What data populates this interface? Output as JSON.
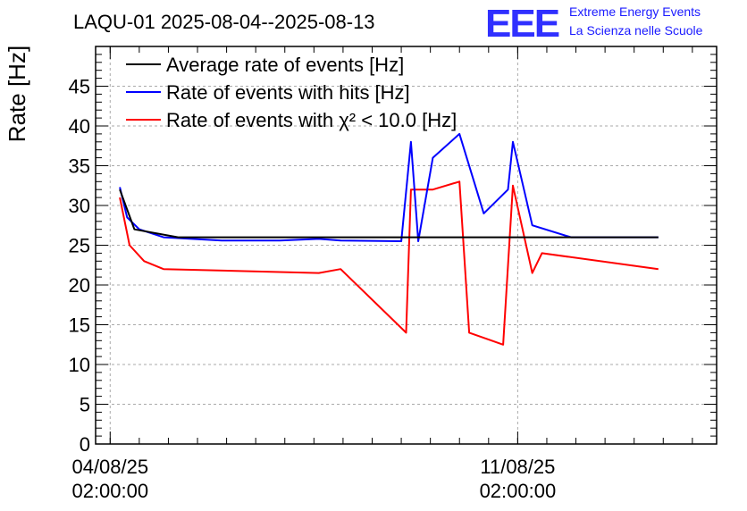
{
  "logo": {
    "letters": "EEE",
    "line1": "Extreme Energy Events",
    "line2": "La Scienza nelle Scuole",
    "color": "#1a1aff"
  },
  "chart_data": {
    "type": "line",
    "title": "LAQU-01 2025-08-04--2025-08-13",
    "ylabel": "Rate [Hz]",
    "xlabel": "",
    "ylim": [
      0,
      50
    ],
    "yticks": [
      0,
      5,
      10,
      15,
      20,
      25,
      30,
      35,
      40,
      45
    ],
    "xlim": [
      "2025-08-03T20:00:00",
      "2025-08-14T12:00:00"
    ],
    "xticks": [
      {
        "value": "2025-08-04T02:00:00",
        "date": "04/08/25",
        "time": "02:00:00"
      },
      {
        "value": "2025-08-11T02:00:00",
        "date": "11/08/25",
        "time": "02:00:00"
      }
    ],
    "grid": true,
    "legend_position": "top-left",
    "series": [
      {
        "name": "Average rate of events [Hz]",
        "color": "#000000",
        "points": [
          [
            "2025-08-04T06:00:00",
            32.0
          ],
          [
            "2025-08-04T12:00:00",
            27.0
          ],
          [
            "2025-08-05T06:00:00",
            26.0
          ],
          [
            "2025-08-07T16:00:00",
            26.0
          ],
          [
            "2025-08-08T01:00:00",
            26.0
          ],
          [
            "2025-08-11T08:00:00",
            26.0
          ],
          [
            "2025-08-13T12:00:00",
            26.0
          ]
        ]
      },
      {
        "name": "Rate of events with hits [Hz]",
        "color": "#0000ff",
        "points": [
          [
            "2025-08-04T06:00:00",
            32.3
          ],
          [
            "2025-08-04T09:00:00",
            28.5
          ],
          [
            "2025-08-04T14:00:00",
            27.0
          ],
          [
            "2025-08-05T00:00:00",
            26.0
          ],
          [
            "2025-08-06T00:00:00",
            25.6
          ],
          [
            "2025-08-07T00:00:00",
            25.6
          ],
          [
            "2025-08-07T16:00:00",
            25.8
          ],
          [
            "2025-08-08T01:00:00",
            25.6
          ],
          [
            "2025-08-09T02:00:00",
            25.5
          ],
          [
            "2025-08-09T06:00:00",
            38.0
          ],
          [
            "2025-08-09T09:00:00",
            25.5
          ],
          [
            "2025-08-09T15:00:00",
            36.0
          ],
          [
            "2025-08-10T02:00:00",
            39.0
          ],
          [
            "2025-08-10T12:00:00",
            29.0
          ],
          [
            "2025-08-10T22:00:00",
            32.0
          ],
          [
            "2025-08-11T00:00:00",
            38.0
          ],
          [
            "2025-08-11T08:00:00",
            27.5
          ],
          [
            "2025-08-12T00:00:00",
            26.0
          ],
          [
            "2025-08-13T12:00:00",
            26.0
          ]
        ]
      },
      {
        "name": "Rate of events with χ² < 10.0 [Hz]",
        "color": "#ff0000",
        "points": [
          [
            "2025-08-04T06:00:00",
            31.0
          ],
          [
            "2025-08-04T10:00:00",
            25.0
          ],
          [
            "2025-08-04T16:00:00",
            23.0
          ],
          [
            "2025-08-05T00:00:00",
            22.0
          ],
          [
            "2025-08-07T16:00:00",
            21.5
          ],
          [
            "2025-08-08T01:00:00",
            22.0
          ],
          [
            "2025-08-09T04:00:00",
            14.0
          ],
          [
            "2025-08-09T06:00:00",
            32.0
          ],
          [
            "2025-08-09T15:00:00",
            32.0
          ],
          [
            "2025-08-10T02:00:00",
            33.0
          ],
          [
            "2025-08-10T06:00:00",
            14.0
          ],
          [
            "2025-08-10T20:00:00",
            12.5
          ],
          [
            "2025-08-11T00:00:00",
            32.5
          ],
          [
            "2025-08-11T08:00:00",
            21.5
          ],
          [
            "2025-08-11T12:00:00",
            24.0
          ],
          [
            "2025-08-13T12:00:00",
            22.0
          ]
        ]
      }
    ]
  }
}
